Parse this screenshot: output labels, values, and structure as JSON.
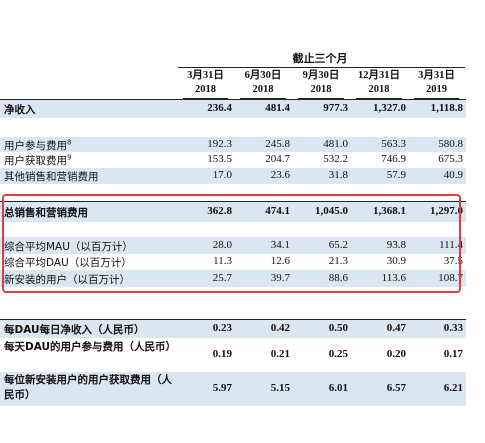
{
  "header": {
    "period_title": "截止三个月",
    "columns": [
      {
        "date": "3月31日",
        "year": "2018"
      },
      {
        "date": "6月30日",
        "year": "2018"
      },
      {
        "date": "9月30日",
        "year": "2018"
      },
      {
        "date": "12月31日",
        "year": "2018"
      },
      {
        "date": "3月31日",
        "year": "2019"
      }
    ]
  },
  "rows": [
    {
      "label": "净收入",
      "bold": true,
      "values": [
        "236.4",
        "481.4",
        "977.3",
        "1,327.0",
        "1,118.8"
      ]
    },
    {
      "label": "用户参与费用",
      "superscript": "8",
      "values": [
        "192.3",
        "245.8",
        "481.0",
        "563.3",
        "580.8"
      ]
    },
    {
      "label": "用户获取费用",
      "superscript": "9",
      "values": [
        "153.5",
        "204.7",
        "532.2",
        "746.9",
        "675.3"
      ]
    },
    {
      "label": "其他销售和营销费用",
      "values": [
        "17.0",
        "23.6",
        "31.8",
        "57.9",
        "40.9"
      ]
    },
    {
      "label": "总销售和营销费用",
      "bold": true,
      "values": [
        "362.8",
        "474.1",
        "1,045.0",
        "1,368.1",
        "1,297.0"
      ]
    },
    {
      "label": "综合平均MAU（以百万计）",
      "values": [
        "28.0",
        "34.1",
        "65.2",
        "93.8",
        "111.4"
      ]
    },
    {
      "label": "综合平均DAU（以百万计）",
      "values": [
        "11.3",
        "12.6",
        "21.3",
        "30.9",
        "37.5"
      ]
    },
    {
      "label": "新安装的用户（以百万计）",
      "values": [
        "25.7",
        "39.7",
        "88.6",
        "113.6",
        "108.7"
      ]
    },
    {
      "label": "每DAU每日净收入（人民币）",
      "bold": true,
      "values": [
        "0.23",
        "0.42",
        "0.50",
        "0.47",
        "0.33"
      ]
    },
    {
      "label": "每天DAU的用户参与费用（人民币）",
      "bold": true,
      "values": [
        "0.19",
        "0.21",
        "0.25",
        "0.20",
        "0.17"
      ]
    },
    {
      "label": "每位新安装用户的用户获取费用（人民币）",
      "bold": true,
      "values": [
        "5.97",
        "5.15",
        "6.01",
        "6.57",
        "6.21"
      ]
    }
  ],
  "colors": {
    "shade": "#dbe6f3",
    "highlight_box": "#e23b3b"
  }
}
